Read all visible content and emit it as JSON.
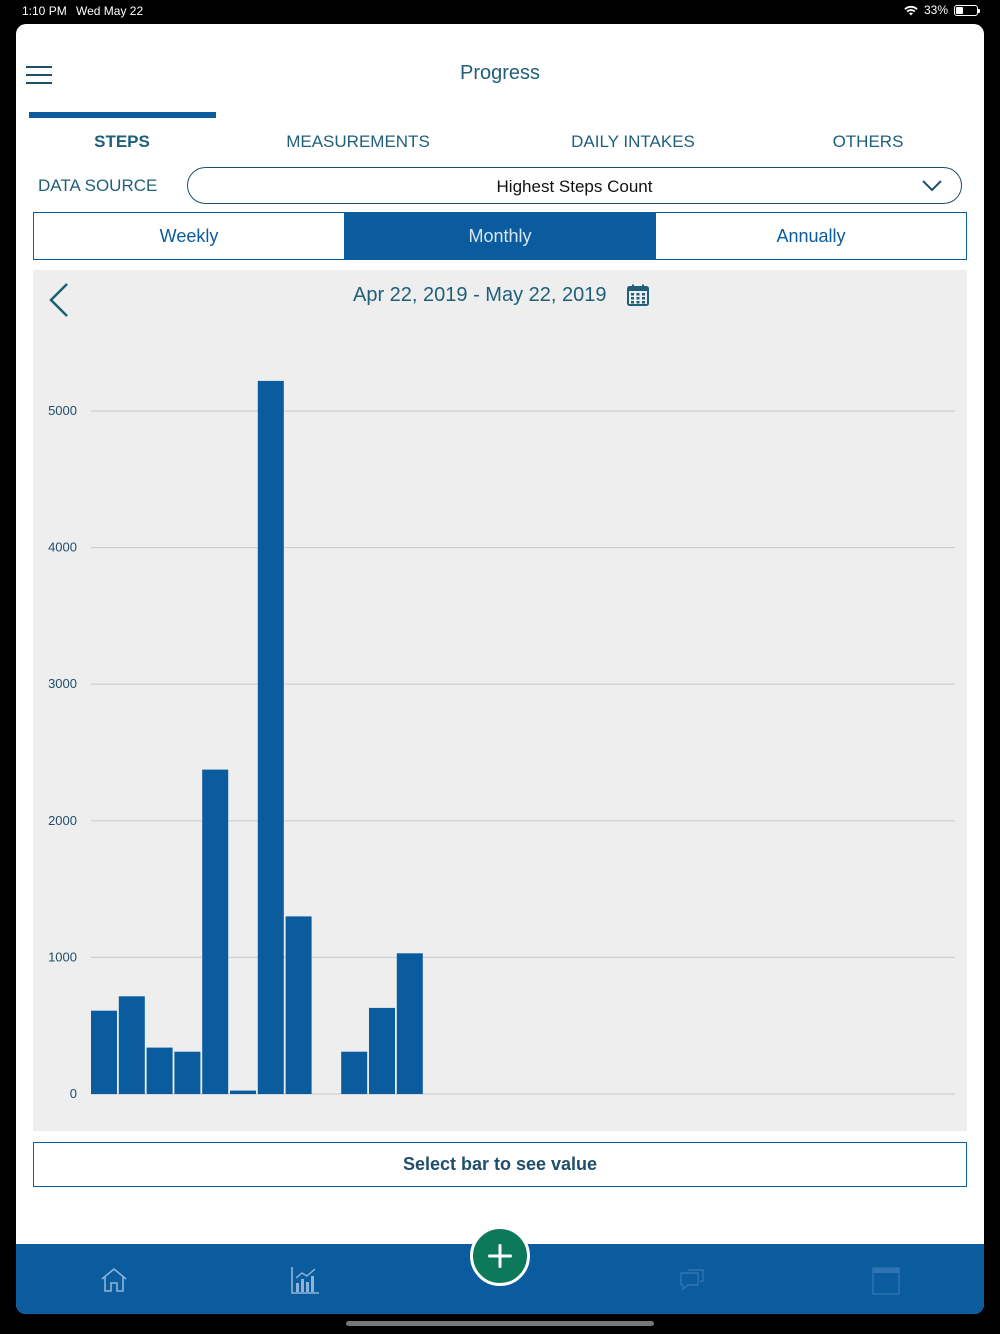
{
  "status_bar": {
    "time": "1:10 PM",
    "date": "Wed May 22",
    "battery": "33%",
    "battery_level": 0.33
  },
  "header": {
    "title": "Progress"
  },
  "tabs": [
    {
      "label": "STEPS",
      "active": true
    },
    {
      "label": "MEASUREMENTS",
      "active": false
    },
    {
      "label": "DAILY INTAKES",
      "active": false
    },
    {
      "label": "OTHERS",
      "active": false
    }
  ],
  "data_source": {
    "label": "DATA SOURCE",
    "selected": "Highest Steps Count"
  },
  "period": {
    "options": [
      "Weekly",
      "Monthly",
      "Annually"
    ],
    "selected": "Monthly"
  },
  "date_range": "Apr 22, 2019 - May 22, 2019",
  "colors": {
    "primary": "#0a5c9e",
    "bar": "#0a5c9e",
    "fab": "#0c7a5a",
    "text": "#1f5f7a",
    "panel": "#eeeeee"
  },
  "chart_data": {
    "type": "bar",
    "title": "",
    "xlabel": "",
    "ylabel": "",
    "ylim": [
      0,
      5300
    ],
    "yticks": [
      0,
      1000,
      2000,
      3000,
      4000,
      5000
    ],
    "grid": true,
    "num_slots": 31,
    "values": [
      610,
      715,
      340,
      310,
      2375,
      25,
      5220,
      1300,
      0,
      310,
      630,
      1030,
      0,
      0,
      0,
      0,
      0,
      0,
      0,
      0,
      0,
      0,
      0,
      0,
      0,
      0,
      0,
      0,
      0,
      0,
      0
    ]
  },
  "value_box": {
    "text": "Select bar to see value"
  },
  "bottom_nav": {
    "items": [
      {
        "icon": "home-icon"
      },
      {
        "icon": "chart-icon"
      },
      {
        "icon": "chat-icon"
      },
      {
        "icon": "calendar-icon"
      }
    ],
    "fab_icon": "plus-icon"
  }
}
